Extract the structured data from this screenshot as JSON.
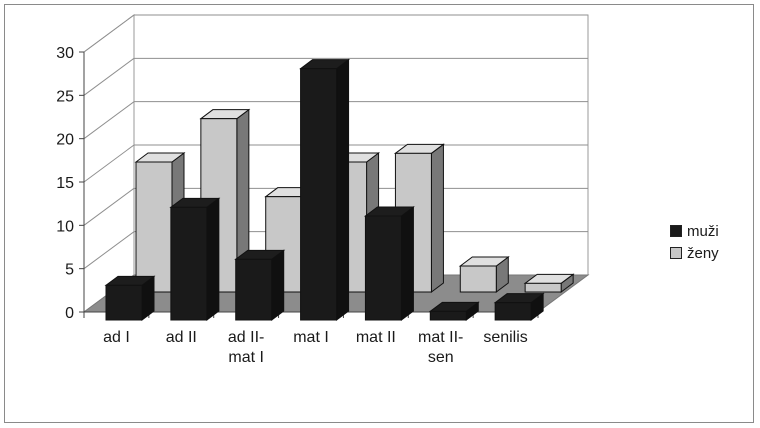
{
  "chart_data": {
    "type": "bar",
    "categories": [
      "ad I",
      "ad II",
      "ad II-\nmat I",
      "mat I",
      "mat II",
      "mat II-\nsen",
      "senilis"
    ],
    "series": [
      {
        "name": "muži",
        "values": [
          4,
          13,
          7,
          29,
          12,
          1,
          2
        ],
        "color": "#1a1a1a"
      },
      {
        "name": "ženy",
        "values": [
          15,
          20,
          11,
          15,
          16,
          3,
          1
        ],
        "color": "#c8c8c8"
      }
    ],
    "ylim": [
      0,
      30
    ],
    "yticks": [
      "0",
      "5",
      "10",
      "15",
      "20",
      "25",
      "30"
    ],
    "grid": true,
    "legend_position": "right",
    "style": "3d-clustered-column"
  }
}
